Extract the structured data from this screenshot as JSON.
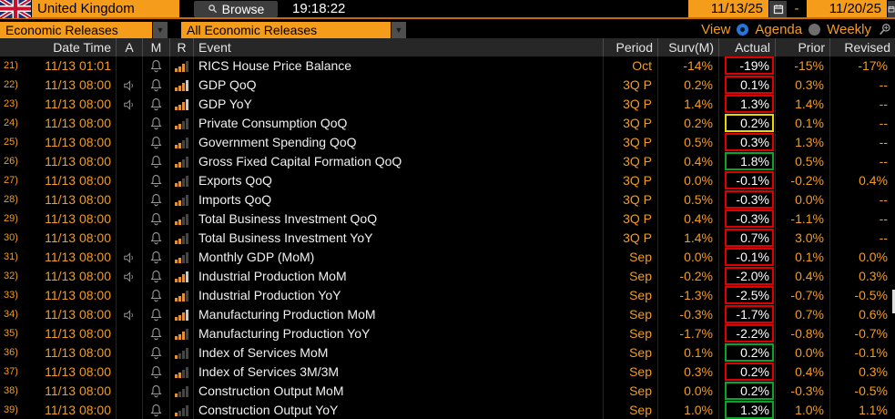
{
  "topbar": {
    "country": "United Kingdom",
    "browse_label": "Browse",
    "clock": "19:18:22",
    "date_from": "11/13/25",
    "date_to": "11/20/25",
    "range_separator": "-"
  },
  "filterbar": {
    "left_dropdown": "Economic Releases",
    "right_dropdown": "All Economic Releases",
    "view_label": "View",
    "agenda_label": "Agenda",
    "weekly_label": "Weekly",
    "selected_view": "Agenda"
  },
  "colors": {
    "amber": "#f49c1c",
    "orange_box": "#f59d1a",
    "beat": "#0da228",
    "miss": "#e00000",
    "inline": "#e8d800",
    "bar_lit": "#e0913c",
    "bar_top_bright": "#c9c9c9",
    "bar_unlit": "#454545"
  },
  "table": {
    "headers": {
      "datetime": "Date Time",
      "a": "A",
      "m": "M",
      "r": "R",
      "event": "Event",
      "period": "Period",
      "surv": "Surv(M)",
      "actual": "Actual",
      "prior": "Prior",
      "revised": "Revised"
    },
    "rows": [
      {
        "num": "21)",
        "datetime": "11/13 01:01",
        "speaker": false,
        "bell": true,
        "relevance": 3,
        "event": "RICS House Price Balance",
        "period": "Oct",
        "surv": "-14%",
        "actual": "-19%",
        "actual_box": "miss",
        "prior": "-15%",
        "revised": "-17%"
      },
      {
        "num": "22)",
        "datetime": "11/13 08:00",
        "speaker": true,
        "bell": true,
        "relevance": 4,
        "event": "GDP QoQ",
        "period": "3Q P",
        "surv": "0.2%",
        "actual": "0.1%",
        "actual_box": "miss",
        "prior": "0.3%",
        "revised": "--"
      },
      {
        "num": "23)",
        "datetime": "11/13 08:00",
        "speaker": true,
        "bell": true,
        "relevance": 4,
        "event": "GDP YoY",
        "period": "3Q P",
        "surv": "1.4%",
        "actual": "1.3%",
        "actual_box": "miss",
        "prior": "1.4%",
        "revised": "--"
      },
      {
        "num": "24)",
        "datetime": "11/13 08:00",
        "speaker": false,
        "bell": true,
        "relevance": 2,
        "event": "Private Consumption QoQ",
        "period": "3Q P",
        "surv": "0.2%",
        "actual": "0.2%",
        "actual_box": "inline",
        "prior": "0.1%",
        "revised": "--"
      },
      {
        "num": "25)",
        "datetime": "11/13 08:00",
        "speaker": false,
        "bell": true,
        "relevance": 2,
        "event": "Government Spending QoQ",
        "period": "3Q P",
        "surv": "0.5%",
        "actual": "0.3%",
        "actual_box": "miss",
        "prior": "1.3%",
        "revised": "--"
      },
      {
        "num": "26)",
        "datetime": "11/13 08:00",
        "speaker": false,
        "bell": true,
        "relevance": 2,
        "event": "Gross Fixed Capital Formation QoQ",
        "period": "3Q P",
        "surv": "0.4%",
        "actual": "1.8%",
        "actual_box": "beat",
        "prior": "0.5%",
        "revised": "--"
      },
      {
        "num": "27)",
        "datetime": "11/13 08:00",
        "speaker": false,
        "bell": true,
        "relevance": 2,
        "event": "Exports QoQ",
        "period": "3Q P",
        "surv": "0.0%",
        "actual": "-0.1%",
        "actual_box": "miss",
        "prior": "-0.2%",
        "revised": "0.4%"
      },
      {
        "num": "28)",
        "datetime": "11/13 08:00",
        "speaker": false,
        "bell": true,
        "relevance": 2,
        "event": "Imports QoQ",
        "period": "3Q P",
        "surv": "0.5%",
        "actual": "-0.3%",
        "actual_box": "miss",
        "prior": "0.0%",
        "revised": "--"
      },
      {
        "num": "29)",
        "datetime": "11/13 08:00",
        "speaker": false,
        "bell": true,
        "relevance": 2,
        "event": "Total Business Investment QoQ",
        "period": "3Q P",
        "surv": "0.4%",
        "actual": "-0.3%",
        "actual_box": "miss",
        "prior": "-1.1%",
        "revised": "--"
      },
      {
        "num": "30)",
        "datetime": "11/13 08:00",
        "speaker": false,
        "bell": true,
        "relevance": 2,
        "event": "Total Business Investment YoY",
        "period": "3Q P",
        "surv": "1.4%",
        "actual": "0.7%",
        "actual_box": "miss",
        "prior": "3.0%",
        "revised": "--"
      },
      {
        "num": "31)",
        "datetime": "11/13 08:00",
        "speaker": true,
        "bell": true,
        "relevance": 2,
        "event": "Monthly GDP (MoM)",
        "period": "Sep",
        "surv": "0.0%",
        "actual": "-0.1%",
        "actual_box": "miss",
        "prior": "0.1%",
        "revised": "0.0%"
      },
      {
        "num": "32)",
        "datetime": "11/13 08:00",
        "speaker": true,
        "bell": true,
        "relevance": 4,
        "event": "Industrial Production MoM",
        "period": "Sep",
        "surv": "-0.2%",
        "actual": "-2.0%",
        "actual_box": "miss",
        "prior": "0.4%",
        "revised": "0.3%"
      },
      {
        "num": "33)",
        "datetime": "11/13 08:00",
        "speaker": false,
        "bell": true,
        "relevance": 3,
        "event": "Industrial Production YoY",
        "period": "Sep",
        "surv": "-1.3%",
        "actual": "-2.5%",
        "actual_box": "miss",
        "prior": "-0.7%",
        "revised": "-0.5%"
      },
      {
        "num": "34)",
        "datetime": "11/13 08:00",
        "speaker": true,
        "bell": true,
        "relevance": 4,
        "event": "Manufacturing Production MoM",
        "period": "Sep",
        "surv": "-0.3%",
        "actual": "-1.7%",
        "actual_box": "miss",
        "prior": "0.7%",
        "revised": "0.6%"
      },
      {
        "num": "35)",
        "datetime": "11/13 08:00",
        "speaker": false,
        "bell": true,
        "relevance": 3,
        "event": "Manufacturing Production YoY",
        "period": "Sep",
        "surv": "-1.7%",
        "actual": "-2.2%",
        "actual_box": "miss",
        "prior": "-0.8%",
        "revised": "-0.7%"
      },
      {
        "num": "36)",
        "datetime": "11/13 08:00",
        "speaker": false,
        "bell": true,
        "relevance": 1,
        "event": "Index of Services MoM",
        "period": "Sep",
        "surv": "0.1%",
        "actual": "0.2%",
        "actual_box": "beat",
        "prior": "0.0%",
        "revised": "-0.1%"
      },
      {
        "num": "37)",
        "datetime": "11/13 08:00",
        "speaker": false,
        "bell": true,
        "relevance": 2,
        "event": "Index of Services 3M/3M",
        "period": "Sep",
        "surv": "0.3%",
        "actual": "0.2%",
        "actual_box": "miss",
        "prior": "0.4%",
        "revised": "0.3%"
      },
      {
        "num": "38)",
        "datetime": "11/13 08:00",
        "speaker": false,
        "bell": true,
        "relevance": 1,
        "event": "Construction Output MoM",
        "period": "Sep",
        "surv": "0.0%",
        "actual": "0.2%",
        "actual_box": "beat",
        "prior": "-0.3%",
        "revised": "-0.5%"
      },
      {
        "num": "39)",
        "datetime": "11/13 08:00",
        "speaker": false,
        "bell": true,
        "relevance": 1,
        "event": "Construction Output YoY",
        "period": "Sep",
        "surv": "1.0%",
        "actual": "1.3%",
        "actual_box": "beat",
        "prior": "1.0%",
        "revised": "1.1%"
      }
    ]
  }
}
